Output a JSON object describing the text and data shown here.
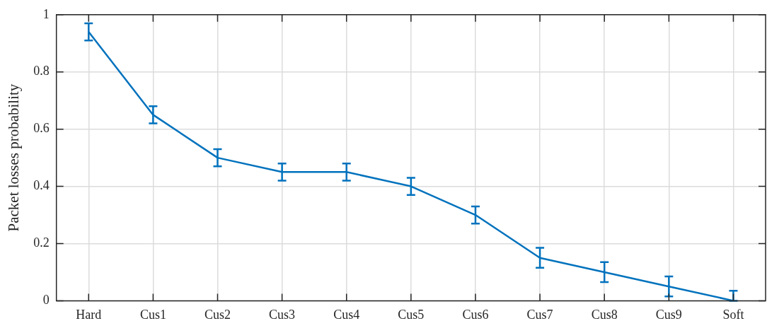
{
  "chart_data": {
    "type": "line",
    "ylabel": "Packet losses probability",
    "categories": [
      "Hard",
      "Cus1",
      "Cus2",
      "Cus3",
      "Cus4",
      "Cus5",
      "Cus6",
      "Cus7",
      "Cus8",
      "Cus9",
      "Soft"
    ],
    "series": [
      {
        "color": "#0072bd",
        "values": [
          0.94,
          0.65,
          0.5,
          0.45,
          0.45,
          0.4,
          0.3,
          0.15,
          0.1,
          0.05,
          0
        ],
        "errors": [
          0.03,
          0.03,
          0.03,
          0.03,
          0.03,
          0.03,
          0.03,
          0.035,
          0.035,
          0.035,
          [
            0,
            0.035
          ]
        ]
      }
    ],
    "ylim": [
      0,
      1
    ],
    "yticks": [
      0,
      0.2,
      0.4,
      0.6,
      0.8,
      1
    ],
    "grid": true,
    "marker": "none",
    "line_style": "solid",
    "legend": false
  }
}
